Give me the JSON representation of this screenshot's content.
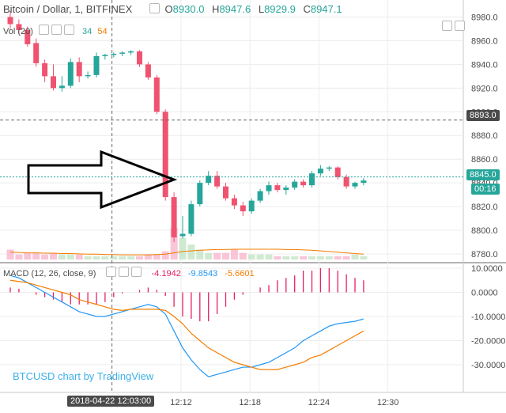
{
  "symbol_title": "Bitcoin / Dollar, 1, BITFINEX",
  "ohlc": {
    "o_label": "O",
    "o_value": "8930.0",
    "h_label": "H",
    "h_value": "8947.6",
    "l_label": "L",
    "l_value": "8929.9",
    "c_label": "C",
    "c_value": "8947.1"
  },
  "volume_legend": {
    "label": "Vol (20)",
    "up": "34",
    "down": "54"
  },
  "macd_legend": {
    "label": "MACD (12, 26, close, 9)",
    "hist": "-4.1942",
    "macd": "-9.8543",
    "signal": "-5.6601"
  },
  "watermark": "BTCUSD chart by TradingView",
  "crosshair_time": "2018-04-22 12:03:00",
  "time_labels": [
    "12:12",
    "12:18",
    "12:24",
    "12:30"
  ],
  "price_labels": [
    "8980.0",
    "8960.0",
    "8940.0",
    "8920.0",
    "8900.0",
    "8880.0",
    "8860.0",
    "8840.0",
    "8820.0",
    "8800.0",
    "8780.0"
  ],
  "macd_labels": [
    "10.0000",
    "0.0000",
    "-10.0000",
    "-20.0000",
    "-30.0000"
  ],
  "badges": {
    "crosshair_price": "8893.0",
    "last_price": "8845.0",
    "countdown": "00:16"
  },
  "colors": {
    "up": "#26a69a",
    "down": "#ef5370",
    "macd_line": "#2196f3",
    "signal_line": "#f57c00",
    "hist": "#e91e63",
    "ma": "#f57c00"
  },
  "chart_data": [
    {
      "type": "candlestick",
      "title": "Bitcoin / Dollar, 1, BITFINEX",
      "interval_minutes": 1,
      "y_axis": "price",
      "ylim": [
        8775,
        8990
      ],
      "candles": [
        {
          "o": 8980,
          "h": 8985,
          "l": 8970,
          "c": 8974
        },
        {
          "o": 8974,
          "h": 8978,
          "l": 8966,
          "c": 8969
        },
        {
          "o": 8969,
          "h": 8972,
          "l": 8955,
          "c": 8957
        },
        {
          "o": 8958,
          "h": 8962,
          "l": 8938,
          "c": 8941
        },
        {
          "o": 8941,
          "h": 8944,
          "l": 8925,
          "c": 8930
        },
        {
          "o": 8930,
          "h": 8940,
          "l": 8918,
          "c": 8920
        },
        {
          "o": 8920,
          "h": 8930,
          "l": 8917,
          "c": 8922
        },
        {
          "o": 8922,
          "h": 8945,
          "l": 8920,
          "c": 8942
        },
        {
          "o": 8942,
          "h": 8946,
          "l": 8925,
          "c": 8930
        },
        {
          "o": 8930,
          "h": 8934,
          "l": 8928,
          "c": 8931
        },
        {
          "o": 8931,
          "h": 8950,
          "l": 8929,
          "c": 8947
        },
        {
          "o": 8947,
          "h": 8949,
          "l": 8944,
          "c": 8948
        },
        {
          "o": 8948,
          "h": 8950,
          "l": 8946,
          "c": 8949
        },
        {
          "o": 8949,
          "h": 8951,
          "l": 8947,
          "c": 8950
        },
        {
          "o": 8950,
          "h": 8952,
          "l": 8948,
          "c": 8951
        },
        {
          "o": 8951,
          "h": 8952,
          "l": 8938,
          "c": 8940
        },
        {
          "o": 8940,
          "h": 8942,
          "l": 8927,
          "c": 8929
        },
        {
          "o": 8929,
          "h": 8931,
          "l": 8898,
          "c": 8900
        },
        {
          "o": 8900,
          "h": 8902,
          "l": 8825,
          "c": 8828
        },
        {
          "o": 8828,
          "h": 8832,
          "l": 8790,
          "c": 8794
        },
        {
          "o": 8795,
          "h": 8812,
          "l": 8793,
          "c": 8797
        },
        {
          "o": 8797,
          "h": 8825,
          "l": 8795,
          "c": 8822
        },
        {
          "o": 8822,
          "h": 8842,
          "l": 8820,
          "c": 8840
        },
        {
          "o": 8840,
          "h": 8850,
          "l": 8838,
          "c": 8846
        },
        {
          "o": 8846,
          "h": 8850,
          "l": 8835,
          "c": 8837
        },
        {
          "o": 8837,
          "h": 8840,
          "l": 8825,
          "c": 8827
        },
        {
          "o": 8827,
          "h": 8830,
          "l": 8818,
          "c": 8821
        },
        {
          "o": 8821,
          "h": 8824,
          "l": 8812,
          "c": 8816
        },
        {
          "o": 8816,
          "h": 8827,
          "l": 8814,
          "c": 8825
        },
        {
          "o": 8825,
          "h": 8835,
          "l": 8823,
          "c": 8833
        },
        {
          "o": 8833,
          "h": 8841,
          "l": 8830,
          "c": 8838
        },
        {
          "o": 8838,
          "h": 8840,
          "l": 8832,
          "c": 8834
        },
        {
          "o": 8834,
          "h": 8838,
          "l": 8830,
          "c": 8836
        },
        {
          "o": 8836,
          "h": 8843,
          "l": 8834,
          "c": 8841
        },
        {
          "o": 8841,
          "h": 8843,
          "l": 8836,
          "c": 8838
        },
        {
          "o": 8838,
          "h": 8850,
          "l": 8836,
          "c": 8848
        },
        {
          "o": 8848,
          "h": 8855,
          "l": 8846,
          "c": 8852
        },
        {
          "o": 8852,
          "h": 8854,
          "l": 8850,
          "c": 8853
        },
        {
          "o": 8853,
          "h": 8854,
          "l": 8843,
          "c": 8845
        },
        {
          "o": 8845,
          "h": 8847,
          "l": 8835,
          "c": 8837
        },
        {
          "o": 8837,
          "h": 8841,
          "l": 8835,
          "c": 8840
        },
        {
          "o": 8840,
          "h": 8844,
          "l": 8838,
          "c": 8842
        }
      ]
    },
    {
      "type": "bar",
      "title": "Vol (20)",
      "values": [
        3,
        1.5,
        2,
        2,
        1.5,
        2,
        1.5,
        1.5,
        1.5,
        1,
        1,
        1,
        1,
        1,
        1,
        1,
        1.5,
        1.5,
        2.5,
        9.5,
        6.5,
        4.5,
        3,
        2,
        2,
        2,
        3,
        2,
        1.5,
        1.5,
        1.5,
        1,
        1,
        1,
        1,
        1,
        1,
        1,
        1,
        1,
        1.5,
        1
      ],
      "ma": [
        2.2,
        2.1,
        2.0,
        2.0,
        1.9,
        1.9,
        1.8,
        1.8,
        1.7,
        1.6,
        1.6,
        1.5,
        1.5,
        1.4,
        1.4,
        1.4,
        1.4,
        1.5,
        1.6,
        2.0,
        2.4,
        2.6,
        2.8,
        2.9,
        3.0,
        3.0,
        3.1,
        3.1,
        3.1,
        3.1,
        3.1,
        3.1,
        3.0,
        3.0,
        2.9,
        2.8,
        2.6,
        2.4,
        2.2,
        2.0,
        1.8,
        1.6
      ]
    },
    {
      "type": "line",
      "title": "MACD (12, 26, close, 9)",
      "ylim": [
        -37,
        12
      ],
      "series": [
        {
          "name": "MACD",
          "values": [
            7,
            6,
            4,
            2,
            0,
            -2,
            -4,
            -6,
            -8,
            -9,
            -10,
            -10,
            -9,
            -8,
            -7,
            -6,
            -5,
            -6,
            -9,
            -16,
            -23,
            -28,
            -32,
            -35,
            -34,
            -33,
            -32,
            -31,
            -31,
            -30,
            -29,
            -27,
            -25,
            -23,
            -20,
            -18,
            -16,
            -14,
            -13,
            -12.5,
            -12,
            -11
          ]
        },
        {
          "name": "Signal",
          "values": [
            5,
            4.5,
            4,
            3,
            2,
            1,
            0,
            -1,
            -3,
            -4,
            -5,
            -6,
            -7,
            -7.5,
            -7,
            -7,
            -7,
            -7,
            -7.5,
            -10,
            -13,
            -17,
            -20,
            -23,
            -25,
            -27,
            -29,
            -30,
            -31,
            -32,
            -32,
            -32,
            -31,
            -30,
            -29,
            -27,
            -26,
            -24,
            -22,
            -20,
            -18,
            -16
          ]
        },
        {
          "name": "Histogram",
          "values": [
            2,
            1.5,
            0,
            -1,
            -2,
            -3,
            -4,
            -5,
            -5,
            -5,
            -5,
            -4,
            -2,
            -0.5,
            0,
            1,
            2,
            1,
            -1.5,
            -6,
            -10,
            -11,
            -12,
            -12,
            -9,
            -6,
            -3,
            -1,
            0,
            2,
            3,
            5,
            6,
            7,
            9,
            9,
            10,
            10,
            9,
            7.5,
            6,
            5
          ]
        }
      ]
    }
  ]
}
